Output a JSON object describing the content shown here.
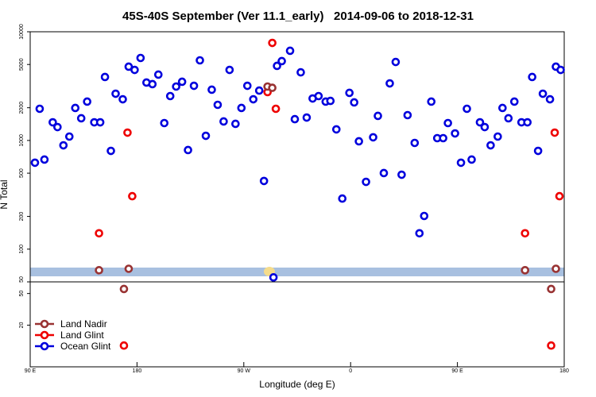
{
  "chart_data": [
    {
      "type": "scatter",
      "title": "45S-40S September (Ver 11.1_early)   2014-09-06 to 2018-12-31",
      "ylabel": "N Total",
      "log_y": true,
      "xlim": [
        90,
        540
      ],
      "ylim": [
        50,
        10000
      ],
      "yticks": [
        10000,
        5000,
        2000,
        1000,
        500,
        200,
        100,
        50
      ],
      "series": [
        {
          "color": "#993333",
          "x": [
            148,
            173,
            290,
            294,
            507,
            533
          ],
          "values": [
            64,
            66,
            3133,
            3050,
            64,
            66
          ]
        },
        {
          "color": "#ee0000",
          "x": [
            148,
            172,
            176,
            294,
            290,
            297,
            507,
            532,
            536
          ],
          "values": [
            140,
            1180,
            307,
            7900,
            2786,
            1956,
            140,
            1180,
            307
          ]
        },
        {
          "color": "#0000dd",
          "x": [
            94,
            102,
            98,
            109,
            113,
            118,
            123,
            128,
            133,
            138,
            144,
            149,
            153,
            158,
            162,
            168,
            173,
            178,
            183,
            188,
            193,
            198,
            203,
            208,
            213,
            218,
            223,
            228,
            233,
            238,
            243,
            248,
            253,
            258,
            263,
            268,
            273,
            278,
            283,
            287,
            298,
            302,
            309,
            313,
            318,
            323,
            328,
            333,
            339,
            343,
            348,
            353,
            359,
            363,
            367,
            373,
            379,
            383,
            388,
            393,
            398,
            403,
            408,
            414,
            418,
            422,
            428,
            433,
            438,
            442,
            448,
            453,
            458,
            462,
            469,
            473,
            478,
            484,
            488,
            493,
            498,
            504,
            509,
            513,
            518,
            522,
            528,
            533,
            537,
            295
          ],
          "values": [
            624,
            667,
            1956,
            1469,
            1328,
            902,
            1086,
            1990,
            1600,
            2277,
            1469,
            1469,
            3837,
            802,
            2692,
            2393,
            4772,
            4457,
            5740,
            3409,
            3296,
            4036,
            1445,
            2560,
            3133,
            3467,
            816,
            3184,
            5457,
            1104,
            2930,
            2128,
            1496,
            4457,
            1422,
            1990,
            3184,
            2393,
            2877,
            424,
            4853,
            5370,
            6683,
            1570,
            4236,
            1625,
            2432,
            2560,
            2277,
            2312,
            1265,
            292,
            2741,
            2239,
            982,
            416,
            1069,
            1683,
            501,
            3350,
            5272,
            484,
            1710,
            949,
            140,
            202,
            2277,
            1050,
            1050,
            1445,
            1161,
            624,
            1956,
            667,
            1469,
            1328,
            902,
            1086,
            1990,
            1600,
            2277,
            1469,
            1469,
            3837,
            802,
            2692,
            2393,
            4772,
            4457,
            55
          ]
        }
      ]
    },
    {
      "type": "scatter",
      "xlabel": "Longitude (deg E)",
      "log_y": true,
      "xlim": [
        90,
        540
      ],
      "xticks": [
        {
          "value": 90,
          "label": "90 E"
        },
        180,
        {
          "value": 270,
          "label": "90 W"
        },
        {
          "value": 360,
          "label": "0"
        },
        {
          "value": 450,
          "label": "90 E"
        },
        {
          "value": 540,
          "label": "180"
        }
      ],
      "ylim": [
        6,
        70
      ],
      "yticks": [
        50,
        20
      ],
      "legend": "lower left",
      "series": [
        {
          "name": "Land Nadir",
          "color": "#993333",
          "x": [
            169,
            529
          ],
          "values": [
            57,
            57
          ]
        },
        {
          "name": "Land Glint",
          "color": "#ee0000",
          "x": [
            169,
            529
          ],
          "values": [
            11.1,
            11.1
          ]
        },
        {
          "name": "Ocean Glint",
          "color": "#0000dd",
          "x": [],
          "values": []
        }
      ]
    }
  ]
}
